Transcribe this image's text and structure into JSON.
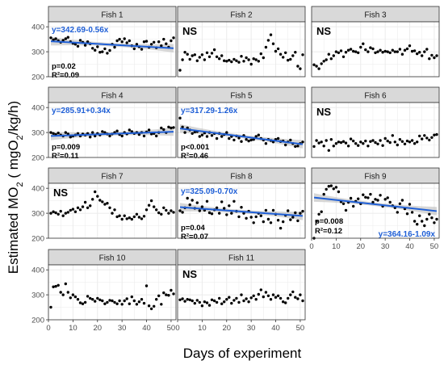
{
  "figure": {
    "ylabel_main": "Estimated MO",
    "ylabel_sub": "2",
    "ylabel_unit_a": " ( mgO",
    "ylabel_unit_sub": "2",
    "ylabel_unit_b": "/kg/h)",
    "xlabel": "Days of experiment"
  },
  "colors": {
    "points": "#000000",
    "fit": "#1f5fd6",
    "band": "#bdbdbd",
    "panel_bg": "#ffffff",
    "grid": "#ebebeb",
    "strip_bg": "#d9d9d9",
    "strip_border": "#333333",
    "panel_border": "#333333"
  },
  "chart_data": {
    "type": "scatter",
    "facet_layout": {
      "columns": 3,
      "rows": 4
    },
    "xlim": [
      0,
      52
    ],
    "ylim": [
      200,
      420
    ],
    "x_ticks": [
      0,
      10,
      20,
      30,
      40,
      50
    ],
    "y_ticks": [
      200,
      300,
      400
    ],
    "x_tick_labels": [
      "0",
      "10",
      "20",
      "30",
      "40",
      "50"
    ],
    "y_tick_labels": [
      "200",
      "300",
      "400"
    ],
    "panels": [
      {
        "title": "Fish 1",
        "ns": false,
        "equation": "y=342.69-0.56x",
        "p_text": "p=0.02",
        "r2_text": "R²=0.09",
        "fit": {
          "intercept": 342.69,
          "slope": -0.56
        },
        "x": [
          1,
          2,
          3,
          4,
          5,
          6,
          7,
          8,
          9,
          10,
          11,
          12,
          13,
          14,
          15,
          16,
          17,
          18,
          19,
          20,
          21,
          22,
          23,
          24,
          25,
          26,
          27,
          28,
          29,
          30,
          31,
          32,
          33,
          34,
          35,
          36,
          37,
          38,
          39,
          40,
          41,
          42,
          43,
          44,
          45,
          46,
          47,
          48,
          49,
          50,
          51
        ],
        "y": [
          356,
          348,
          352,
          344,
          338,
          346,
          352,
          358,
          340,
          334,
          330,
          322,
          346,
          338,
          326,
          340,
          332,
          314,
          306,
          320,
          298,
          300,
          312,
          294,
          305,
          330,
          318,
          344,
          350,
          340,
          352,
          336,
          344,
          324,
          312,
          330,
          320,
          310,
          340,
          342,
          318,
          330,
          338,
          316,
          340,
          324,
          350,
          332,
          318,
          344,
          356
        ]
      },
      {
        "title": "Fish 2",
        "ns": true,
        "ns_text": "NS",
        "x": [
          1,
          2,
          3,
          4,
          5,
          6,
          7,
          8,
          9,
          10,
          11,
          12,
          13,
          14,
          15,
          16,
          17,
          18,
          19,
          20,
          21,
          22,
          23,
          24,
          25,
          26,
          27,
          28,
          29,
          30,
          31,
          32,
          33,
          34,
          35,
          36,
          37,
          38,
          39,
          40,
          41,
          42,
          43,
          44,
          45,
          46,
          47,
          48,
          49,
          50,
          51
        ],
        "y": [
          226,
          268,
          298,
          290,
          270,
          284,
          288,
          264,
          278,
          288,
          268,
          296,
          280,
          294,
          308,
          280,
          272,
          284,
          264,
          262,
          266,
          260,
          270,
          264,
          258,
          282,
          262,
          276,
          268,
          250,
          272,
          268,
          262,
          292,
          276,
          318,
          346,
          368,
          332,
          302,
          312,
          290,
          278,
          296,
          266,
          270,
          284,
          298,
          242,
          232,
          288
        ]
      },
      {
        "title": "Fish 3",
        "ns": true,
        "ns_text": "NS",
        "x": [
          1,
          2,
          3,
          4,
          5,
          6,
          7,
          8,
          9,
          10,
          11,
          12,
          13,
          14,
          15,
          16,
          17,
          18,
          19,
          20,
          21,
          22,
          23,
          24,
          25,
          26,
          27,
          28,
          29,
          30,
          31,
          32,
          33,
          34,
          35,
          36,
          37,
          38,
          39,
          40,
          41,
          42,
          43,
          44,
          45,
          46,
          47,
          48,
          49,
          50,
          51
        ],
        "y": [
          248,
          242,
          232,
          252,
          262,
          268,
          290,
          272,
          284,
          300,
          296,
          304,
          280,
          298,
          306,
          310,
          302,
          300,
          296,
          318,
          332,
          308,
          300,
          316,
          312,
          296,
          300,
          306,
          298,
          302,
          300,
          296,
          306,
          300,
          300,
          310,
          290,
          306,
          312,
          324,
          302,
          304,
          292,
          298,
          284,
          300,
          310,
          272,
          286,
          276,
          284
        ]
      },
      {
        "title": "Fish 4",
        "ns": false,
        "equation": "y=285.91+0.34x",
        "p_text": "p=0.009",
        "r2_text": "R²=0.11",
        "fit": {
          "intercept": 285.91,
          "slope": 0.34
        },
        "x": [
          1,
          2,
          3,
          4,
          5,
          6,
          7,
          8,
          9,
          10,
          11,
          12,
          13,
          14,
          15,
          16,
          17,
          18,
          19,
          20,
          21,
          22,
          23,
          24,
          25,
          26,
          27,
          28,
          29,
          30,
          31,
          32,
          33,
          34,
          35,
          36,
          37,
          38,
          39,
          40,
          41,
          42,
          43,
          44,
          45,
          46,
          47,
          48,
          49,
          50,
          51
        ],
        "y": [
          300,
          296,
          292,
          298,
          290,
          286,
          300,
          294,
          282,
          286,
          290,
          296,
          286,
          294,
          290,
          296,
          282,
          300,
          286,
          296,
          290,
          304,
          300,
          294,
          286,
          294,
          300,
          306,
          292,
          286,
          300,
          294,
          310,
          304,
          296,
          300,
          292,
          300,
          286,
          302,
          310,
          294,
          296,
          286,
          300,
          318,
          312,
          300,
          322,
          318,
          320
        ]
      },
      {
        "title": "Fish 5",
        "ns": false,
        "equation": "y=317.29-1.26x",
        "p_text": "p<0.001",
        "r2_text": "R²=0.46",
        "fit": {
          "intercept": 317.29,
          "slope": -1.26
        },
        "x": [
          1,
          2,
          3,
          4,
          5,
          6,
          7,
          8,
          9,
          10,
          11,
          12,
          13,
          14,
          15,
          16,
          17,
          18,
          19,
          20,
          21,
          22,
          23,
          24,
          25,
          26,
          27,
          28,
          29,
          30,
          31,
          32,
          33,
          34,
          35,
          36,
          37,
          38,
          39,
          40,
          41,
          42,
          43,
          44,
          45,
          46,
          47,
          48,
          49,
          50,
          51
        ],
        "y": [
          358,
          322,
          300,
          318,
          310,
          296,
          302,
          304,
          284,
          290,
          298,
          284,
          300,
          288,
          296,
          276,
          296,
          284,
          292,
          300,
          276,
          284,
          270,
          286,
          278,
          264,
          288,
          272,
          266,
          270,
          272,
          284,
          290,
          276,
          270,
          256,
          272,
          268,
          262,
          272,
          276,
          264,
          266,
          250,
          262,
          270,
          256,
          244,
          246,
          256,
          262
        ]
      },
      {
        "title": "Fish 6",
        "ns": true,
        "ns_text": "NS",
        "x": [
          1,
          2,
          3,
          4,
          5,
          6,
          7,
          8,
          9,
          10,
          11,
          12,
          13,
          14,
          15,
          16,
          17,
          18,
          19,
          20,
          21,
          22,
          23,
          24,
          25,
          26,
          27,
          28,
          29,
          30,
          31,
          32,
          33,
          34,
          35,
          36,
          37,
          38,
          39,
          40,
          41,
          42,
          43,
          44,
          45,
          46,
          47,
          48,
          49,
          50,
          51
        ],
        "y": [
          244,
          268,
          258,
          262,
          246,
          268,
          228,
          272,
          246,
          256,
          262,
          260,
          264,
          258,
          246,
          274,
          266,
          256,
          248,
          262,
          256,
          266,
          246,
          264,
          268,
          260,
          254,
          268,
          248,
          276,
          266,
          260,
          288,
          262,
          250,
          272,
          264,
          254,
          266,
          262,
          268,
          256,
          262,
          286,
          274,
          288,
          278,
          270,
          280,
          290,
          292
        ]
      },
      {
        "title": "Fish 7",
        "ns": true,
        "ns_text": "NS",
        "x": [
          1,
          2,
          3,
          4,
          5,
          6,
          7,
          8,
          9,
          10,
          11,
          12,
          13,
          14,
          15,
          16,
          17,
          18,
          19,
          20,
          21,
          22,
          23,
          24,
          25,
          26,
          27,
          28,
          29,
          30,
          31,
          32,
          33,
          34,
          35,
          36,
          37,
          38,
          39,
          40,
          41,
          42,
          43,
          44,
          45,
          46,
          47,
          48,
          49,
          50,
          51
        ],
        "y": [
          300,
          306,
          302,
          296,
          308,
          290,
          300,
          304,
          312,
          316,
          306,
          322,
          314,
          326,
          344,
          322,
          330,
          356,
          386,
          368,
          352,
          346,
          336,
          340,
          322,
          300,
          314,
          286,
          290,
          276,
          290,
          278,
          282,
          276,
          286,
          296,
          284,
          278,
          288,
          314,
          332,
          350,
          326,
          314,
          302,
          296,
          322,
          312,
          300,
          310,
          304
        ]
      },
      {
        "title": "Fish 8",
        "ns": false,
        "equation": "y=325.09-0.70x",
        "p_text": "p=0.04",
        "r2_text": "R²=0.07",
        "fit": {
          "intercept": 325.09,
          "slope": -0.7
        },
        "x": [
          1,
          2,
          3,
          4,
          5,
          6,
          7,
          8,
          9,
          10,
          11,
          12,
          13,
          14,
          15,
          16,
          17,
          18,
          19,
          20,
          21,
          22,
          23,
          24,
          25,
          26,
          27,
          28,
          29,
          30,
          31,
          32,
          33,
          34,
          35,
          36,
          37,
          38,
          39,
          40,
          41,
          42,
          43,
          44,
          45,
          46,
          47,
          48,
          49,
          50,
          51
        ],
        "y": [
          310,
          304,
          322,
          360,
          334,
          352,
          320,
          342,
          310,
          326,
          312,
          348,
          302,
          298,
          314,
          322,
          300,
          346,
          320,
          294,
          330,
          300,
          348,
          308,
          286,
          324,
          300,
          280,
          308,
          284,
          262,
          286,
          300,
          290,
          266,
          312,
          276,
          262,
          312,
          296,
          272,
          240,
          266,
          292,
          310,
          274,
          284,
          302,
          270,
          300,
          308
        ]
      },
      {
        "title": "Fish 9",
        "ns": false,
        "equation": "y=364.16-1.09x",
        "p_text": "p=0.008",
        "r2_text": "R²=0.12",
        "fit": {
          "intercept": 364.16,
          "slope": -1.09
        },
        "x": [
          1,
          2,
          3,
          4,
          5,
          6,
          7,
          8,
          9,
          10,
          11,
          12,
          13,
          14,
          15,
          16,
          17,
          18,
          19,
          20,
          21,
          22,
          23,
          24,
          25,
          26,
          27,
          28,
          29,
          30,
          31,
          32,
          33,
          34,
          35,
          36,
          37,
          38,
          39,
          40,
          41,
          42,
          43,
          44,
          45,
          46,
          47,
          48,
          49,
          50,
          51
        ],
        "y": [
          200,
          268,
          296,
          306,
          376,
          396,
          408,
          410,
          398,
          404,
          386,
          346,
          338,
          312,
          344,
          360,
          328,
          348,
          358,
          338,
          374,
          364,
          362,
          376,
          344,
          356,
          352,
          372,
          328,
          356,
          362,
          344,
          330,
          322,
          304,
          338,
          352,
          318,
          298,
          336,
          304,
          268,
          256,
          290,
          268,
          250,
          276,
          296,
          282,
          262,
          276
        ]
      },
      {
        "title": "Fish 10",
        "ns": false,
        "x": [
          1,
          2,
          3,
          4,
          5,
          6,
          7,
          8,
          9,
          10,
          11,
          12,
          13,
          14,
          15,
          16,
          17,
          18,
          19,
          20,
          21,
          22,
          23,
          24,
          25,
          26,
          27,
          28,
          29,
          30,
          31,
          32,
          33,
          34,
          35,
          36,
          37,
          38,
          39,
          40,
          41,
          42,
          43,
          44,
          45,
          46,
          47,
          48,
          49,
          50,
          51
        ],
        "y": [
          250,
          332,
          334,
          338,
          310,
          300,
          344,
          310,
          288,
          300,
          292,
          282,
          268,
          264,
          270,
          294,
          286,
          282,
          274,
          286,
          280,
          276,
          264,
          270,
          278,
          276,
          270,
          264,
          276,
          262,
          276,
          284,
          264,
          292,
          276,
          262,
          272,
          282,
          266,
          336,
          256,
          244,
          254,
          282,
          296,
          262,
          308,
          300,
          298,
          318,
          304
        ]
      },
      {
        "title": "Fish 11",
        "ns": true,
        "ns_text": "NS",
        "x": [
          1,
          2,
          3,
          4,
          5,
          6,
          7,
          8,
          9,
          10,
          11,
          12,
          13,
          14,
          15,
          16,
          17,
          18,
          19,
          20,
          21,
          22,
          23,
          24,
          25,
          26,
          27,
          28,
          29,
          30,
          31,
          32,
          33,
          34,
          35,
          36,
          37,
          38,
          39,
          40,
          41,
          42,
          43,
          44,
          45,
          46,
          47,
          48,
          49,
          50,
          51
        ],
        "y": [
          280,
          284,
          274,
          282,
          280,
          276,
          266,
          278,
          270,
          256,
          272,
          268,
          258,
          280,
          276,
          270,
          286,
          264,
          272,
          282,
          290,
          266,
          278,
          286,
          270,
          300,
          276,
          284,
          272,
          288,
          296,
          282,
          302,
          320,
          292,
          310,
          296,
          282,
          300,
          290,
          296,
          286,
          272,
          268,
          286,
          300,
          312,
          290,
          284,
          300,
          276
        ]
      }
    ]
  }
}
